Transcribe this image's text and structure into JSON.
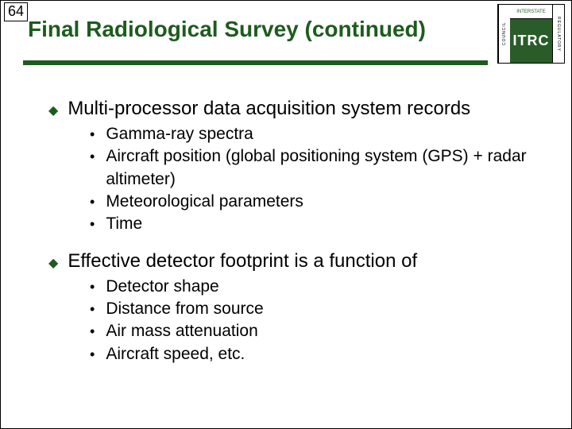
{
  "page_number": "64",
  "title": "Final Radiological Survey (continued)",
  "title_color": "#1e5b1e",
  "underline_color": "#1e5b1e",
  "logo": {
    "left_text": "COUNCIL",
    "top_text": "INTERSTATE",
    "center_text": "ITRC",
    "right_text": "REGULATORY",
    "center_bg": "#2a5c2a",
    "center_fg": "#ffffff"
  },
  "bullets": [
    {
      "text": "Multi-processor data acquisition system records",
      "sub": [
        "Gamma-ray spectra",
        "Aircraft position (global positioning system (GPS) + radar altimeter)",
        "Meteorological parameters",
        "Time"
      ]
    },
    {
      "text": "Effective detector footprint is a function of",
      "sub": [
        "Detector shape",
        "Distance from source",
        "Air mass attenuation",
        "Aircraft speed, etc."
      ]
    }
  ]
}
